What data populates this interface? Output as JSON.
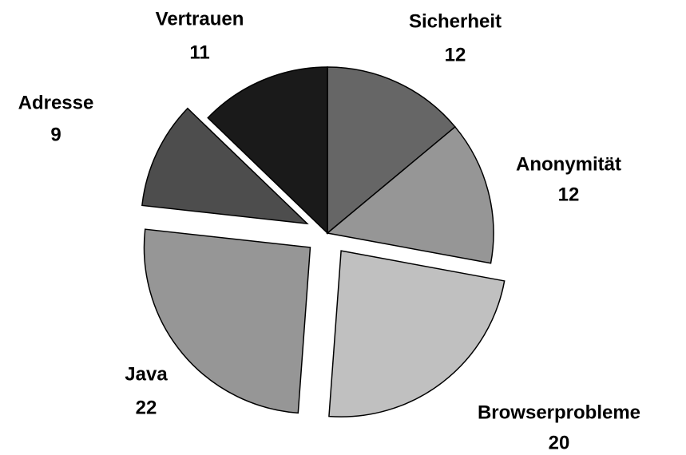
{
  "chart_data": {
    "type": "pie",
    "categories": [
      "Sicherheit",
      "Anonymität",
      "Browserprobleme",
      "Java",
      "Adresse",
      "Vertrauen"
    ],
    "values": [
      12,
      12,
      20,
      22,
      9,
      11
    ],
    "colors": [
      "#666666",
      "#969696",
      "#c0c0c0",
      "#969696",
      "#4d4d4d",
      "#1a1a1a"
    ],
    "exploded": [
      false,
      false,
      true,
      true,
      true,
      false
    ]
  }
}
